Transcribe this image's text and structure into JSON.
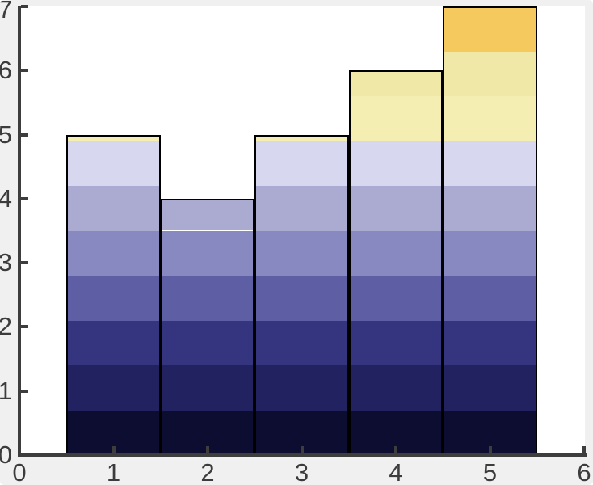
{
  "figure": {
    "background": "#f0f0f0",
    "plot_background": "#ffffff",
    "axis_color": "#3d3d3d",
    "tick_label_color": "#3c3c3c"
  },
  "chart_data": {
    "type": "bar",
    "x": [
      1,
      2,
      3,
      4,
      5
    ],
    "values": [
      5,
      4,
      5,
      6,
      7
    ],
    "bar_width": 1,
    "xlim": [
      0,
      6
    ],
    "ylim": [
      0,
      7
    ],
    "x_tick_labels": [
      "0",
      "1",
      "2",
      "3",
      "4",
      "5",
      "6"
    ],
    "x_tick_values": [
      0,
      1,
      2,
      3,
      4,
      5,
      6
    ],
    "y_tick_labels": [
      "0",
      "1",
      "2",
      "3",
      "4",
      "5",
      "6",
      "7"
    ],
    "y_tick_values": [
      0,
      1,
      2,
      3,
      4,
      5,
      6,
      7
    ],
    "title": "",
    "xlabel": "",
    "ylabel": "",
    "grid": false,
    "legend": null,
    "bar_edge_color": "#000000",
    "color_mapping": "fill color banded by y-value, 10 equal bands over 0-7",
    "colormap_bands": [
      {
        "from": 0.0,
        "to": 0.7,
        "color": "#0d0d31"
      },
      {
        "from": 0.7,
        "to": 1.4,
        "color": "#222261"
      },
      {
        "from": 1.4,
        "to": 2.1,
        "color": "#35357f"
      },
      {
        "from": 2.1,
        "to": 2.8,
        "color": "#5e5ea4"
      },
      {
        "from": 2.8,
        "to": 3.5,
        "color": "#8989c2"
      },
      {
        "from": 3.5,
        "to": 4.2,
        "color": "#abaad1"
      },
      {
        "from": 4.2,
        "to": 4.9,
        "color": "#d7d7ef"
      },
      {
        "from": 4.9,
        "to": 5.6,
        "color": "#f5eeb2"
      },
      {
        "from": 5.6,
        "to": 6.3,
        "color": "#f0e8a6"
      },
      {
        "from": 6.3,
        "to": 7.0,
        "color": "#f6c95f"
      }
    ]
  }
}
